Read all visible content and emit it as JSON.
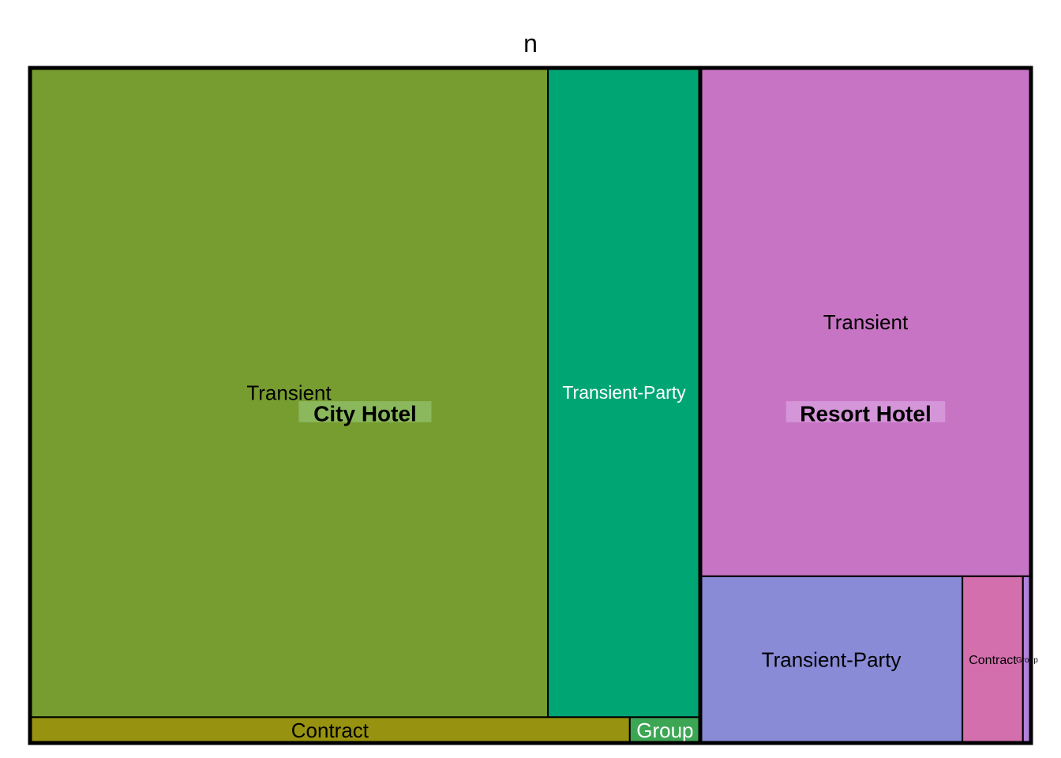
{
  "chart_data": {
    "type": "treemap",
    "title": "n",
    "groups": [
      {
        "name": "City Hotel",
        "label_bg": "#8dbb63",
        "children": [
          {
            "name": "Transient",
            "value": 50,
            "color": "#779d30",
            "label_color": "#000000"
          },
          {
            "name": "Transient-Party",
            "value": 14.7,
            "color": "#00a574",
            "label_color": "#ffffff"
          },
          {
            "name": "Contract",
            "value": 2.3,
            "color": "#979210",
            "label_color": "#000000"
          },
          {
            "name": "Group",
            "value": 0.27,
            "color": "#3ca654",
            "label_color": "#ffffff"
          }
        ]
      },
      {
        "name": "Resort Hotel",
        "label_bg": "#d699dc",
        "children": [
          {
            "name": "Transient",
            "value": 25.0,
            "color": "#c874c4",
            "label_color": "#000000"
          },
          {
            "name": "Transient-Party",
            "value": 6.5,
            "color": "#898bd7",
            "label_color": "#000000"
          },
          {
            "name": "Contract",
            "value": 1.5,
            "color": "#d36fad",
            "label_color": "#000000"
          },
          {
            "name": "Group",
            "value": 0.2,
            "color": "#b282db",
            "label_color": "#000000"
          }
        ]
      }
    ]
  }
}
